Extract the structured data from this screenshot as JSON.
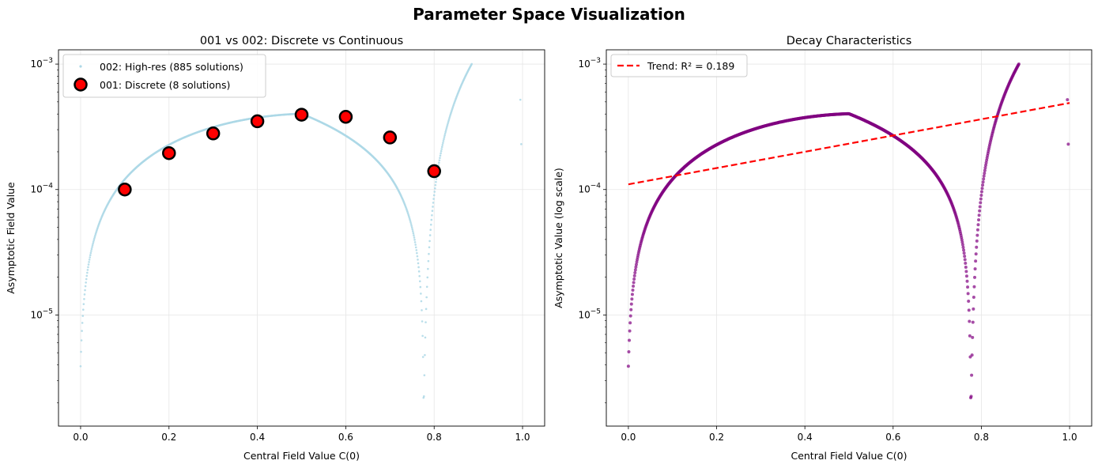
{
  "suptitle": "Parameter Space Visualization",
  "colors": {
    "highres": "#add8e6",
    "discrete_fill": "#ff0000",
    "discrete_edge": "#000000",
    "decay_points": "#800080",
    "trend": "#ff0000",
    "grid": "#e6e6e6"
  },
  "chart_data": [
    {
      "type": "scatter",
      "title": "001 vs 002: Discrete vs Continuous",
      "xlabel": "Central Field Value C(0)",
      "ylabel": "Asymptotic Field Value",
      "xlim": [
        -0.05,
        1.05
      ],
      "ylim": [
        1.3e-06,
        0.0013
      ],
      "yscale": "log",
      "grid": true,
      "legend_position": "upper left",
      "xticks": [
        "0.0",
        "0.2",
        "0.4",
        "0.6",
        "0.8",
        "1.0"
      ],
      "yticks": [
        "10^-5",
        "10^-4",
        "10^-3"
      ],
      "series": [
        {
          "name": "002: High-res (885 solutions)",
          "kind": "curve",
          "description_points": "dense points along C(0) in [0, 0.885]",
          "outliers": [
            [
              0.995,
              0.00052
            ],
            [
              0.997,
              0.00023
            ]
          ]
        },
        {
          "name": "001: Discrete (8 solutions)",
          "kind": "markers",
          "x": [
            0.1,
            0.2,
            0.3,
            0.4,
            0.5,
            0.6,
            0.7,
            0.8
          ],
          "y": [
            0.0001,
            0.000195,
            0.00028,
            0.00035,
            0.000395,
            0.00038,
            0.00026,
            0.00014
          ]
        }
      ]
    },
    {
      "type": "scatter",
      "title": "Decay Characteristics",
      "xlabel": "Central Field Value C(0)",
      "ylabel": "Asymptotic Value (log scale)",
      "xlim": [
        -0.05,
        1.05
      ],
      "ylim": [
        1.3e-06,
        0.0013
      ],
      "yscale": "log",
      "grid": true,
      "legend_position": "upper left",
      "xticks": [
        "0.0",
        "0.2",
        "0.4",
        "0.6",
        "0.8",
        "1.0"
      ],
      "yticks": [
        "10^-5",
        "10^-4",
        "10^-3"
      ],
      "series": [
        {
          "name": "",
          "kind": "curve",
          "outliers": [
            [
              0.995,
              0.00052
            ],
            [
              0.997,
              0.00023
            ]
          ]
        },
        {
          "name": "Trend: R² = 0.189",
          "kind": "trend-line",
          "x": [
            0.0,
            1.0
          ],
          "y": [
            0.00011,
            0.00049
          ]
        }
      ]
    }
  ]
}
